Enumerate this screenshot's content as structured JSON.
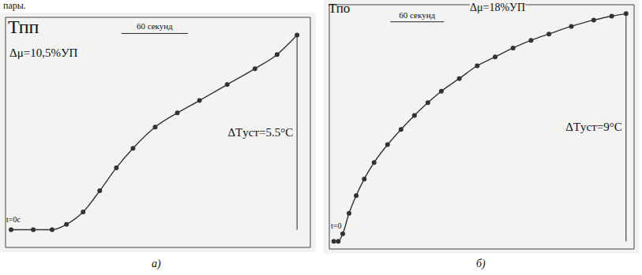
{
  "page_text": "пары.",
  "chart_data": [
    {
      "type": "line",
      "title": "Тпп",
      "caption": "а)",
      "x": [
        0,
        20,
        37,
        50,
        65,
        80,
        95,
        110,
        130,
        150,
        170,
        195,
        220,
        240,
        258
      ],
      "values": [
        0,
        0,
        0,
        0.15,
        0.5,
        1.1,
        1.75,
        2.3,
        2.9,
        3.3,
        3.65,
        4.1,
        4.55,
        4.95,
        5.5
      ],
      "xlim": [
        -5,
        270
      ],
      "ylim": [
        -0.5,
        6
      ],
      "xticks": [
        0,
        60,
        120,
        180,
        240
      ],
      "yticks": [
        0,
        1,
        2,
        3,
        4,
        5,
        6
      ],
      "grid": true,
      "tick_labels": false,
      "color": "#333333",
      "marker": "circle",
      "annotations": [
        {
          "text": "Δμ=10,5%УП"
        },
        {
          "text": "t=0с"
        }
      ],
      "scale_bar": {
        "value": 60,
        "label": "60 секунд"
      },
      "steady_state": {
        "value": 5.5,
        "label": "ΔTуст=5.5°C"
      }
    },
    {
      "type": "line",
      "title": "Тпо",
      "caption": "б)",
      "x": [
        0,
        5,
        10,
        17,
        25,
        34,
        45,
        60,
        75,
        90,
        105,
        120,
        140,
        160,
        180,
        200,
        220,
        240,
        265,
        290,
        310,
        326
      ],
      "values": [
        0,
        0,
        0.3,
        1.1,
        1.8,
        2.45,
        3.1,
        3.8,
        4.4,
        4.95,
        5.45,
        5.9,
        6.4,
        6.9,
        7.25,
        7.6,
        7.9,
        8.15,
        8.45,
        8.7,
        8.85,
        8.95
      ],
      "xlim": [
        -5,
        335
      ],
      "ylim": [
        -0.3,
        9.3
      ],
      "xticks": [
        0,
        60,
        120,
        180,
        240,
        300
      ],
      "yticks": [
        0,
        1,
        2,
        3,
        4,
        5,
        6,
        7,
        8,
        9
      ],
      "grid": true,
      "tick_labels": false,
      "color": "#333333",
      "marker": "circle",
      "annotations": [
        {
          "text": "Δμ=18%УП"
        },
        {
          "text": "t=0"
        }
      ],
      "scale_bar": {
        "value": 60,
        "label": "60 секунд"
      },
      "steady_state": {
        "value": 9,
        "label": "ΔTуст=9°C"
      }
    }
  ]
}
